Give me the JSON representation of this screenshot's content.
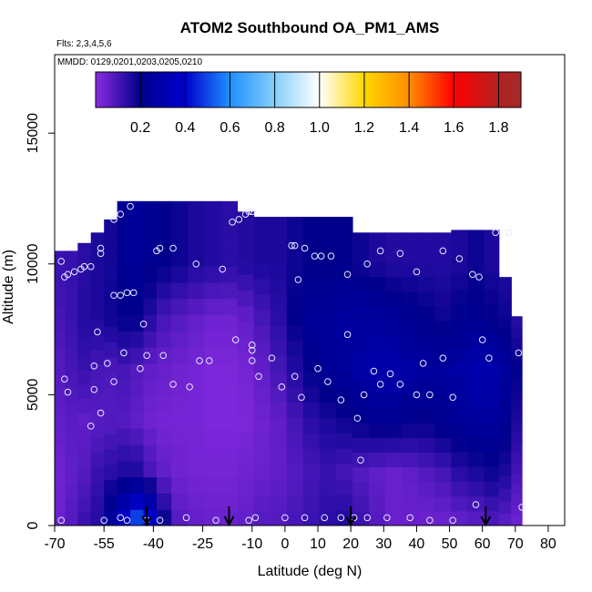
{
  "chart_data": {
    "type": "heatmap",
    "title": "ATOM2 Southbound OA_PM1_AMS",
    "subtitle_flights": "Flts: 2,3,4,5,6",
    "subtitle_dates": "MMDD: 0129,0201,0203,0205,0210",
    "xlabel": "Latitude (deg N)",
    "ylabel": "Altitude (m)",
    "xlim": [
      -70,
      85
    ],
    "ylim": [
      0,
      18000
    ],
    "x_ticks": [
      -70,
      -55,
      -40,
      -25,
      -10,
      0,
      10,
      20,
      30,
      40,
      50,
      60,
      70,
      80
    ],
    "x_tick_labels": [
      "-70",
      "-55",
      "-40",
      "-25",
      "-10",
      "0",
      "10",
      "20",
      "30",
      "40",
      "50",
      "60",
      "70",
      "80"
    ],
    "y_ticks": [
      0,
      5000,
      10000,
      15000
    ],
    "y_tick_labels": [
      "0",
      "5000",
      "10000",
      "15000"
    ],
    "colorbar": {
      "range": [
        0,
        1.9
      ],
      "ticks": [
        0.2,
        0.4,
        0.6,
        0.8,
        1.0,
        1.2,
        1.4,
        1.6,
        1.8
      ],
      "tick_labels": [
        "0.2",
        "0.4",
        "0.6",
        "0.8",
        "1.0",
        "1.2",
        "1.4",
        "1.6",
        "1.8"
      ],
      "stops": [
        {
          "v": 0.0,
          "color": "#8a2be2"
        },
        {
          "v": 0.2,
          "color": "#00008b"
        },
        {
          "v": 0.4,
          "color": "#0000cd"
        },
        {
          "v": 0.6,
          "color": "#1e90ff"
        },
        {
          "v": 0.8,
          "color": "#87cefa"
        },
        {
          "v": 1.0,
          "color": "#ffffff"
        },
        {
          "v": 1.2,
          "color": "#ffd700"
        },
        {
          "v": 1.4,
          "color": "#ff8c00"
        },
        {
          "v": 1.6,
          "color": "#ff0000"
        },
        {
          "v": 1.8,
          "color": "#b22222"
        },
        {
          "v": 1.9,
          "color": "#a52a2a"
        }
      ]
    },
    "field_columns": [
      {
        "lat": -68.5,
        "zmax": 10500,
        "v": [
          0.05,
          0.04,
          0.06,
          0.08,
          0.1,
          0.12
        ]
      },
      {
        "lat": -65,
        "zmax": 10500,
        "v": [
          0.08,
          0.06,
          0.07,
          0.1,
          0.12,
          0.12
        ]
      },
      {
        "lat": -61,
        "zmax": 10800,
        "v": [
          0.12,
          0.08,
          0.06,
          0.12,
          0.15,
          0.14
        ]
      },
      {
        "lat": -57,
        "zmax": 11200,
        "v": [
          0.15,
          0.12,
          0.07,
          0.1,
          0.16,
          0.16
        ]
      },
      {
        "lat": -53,
        "zmax": 11700,
        "v": [
          0.28,
          0.14,
          0.08,
          0.09,
          0.18,
          0.17
        ]
      },
      {
        "lat": -49,
        "zmax": 12400,
        "v": [
          0.4,
          0.16,
          0.08,
          0.1,
          0.2,
          0.22
        ]
      },
      {
        "lat": -45,
        "zmax": 12400,
        "v": [
          0.55,
          0.16,
          0.06,
          0.08,
          0.2,
          0.24
        ]
      },
      {
        "lat": -41,
        "zmax": 12400,
        "v": [
          0.45,
          0.1,
          0.04,
          0.06,
          0.15,
          0.22
        ]
      },
      {
        "lat": -37,
        "zmax": 12400,
        "v": [
          0.2,
          0.06,
          0.03,
          0.05,
          0.1,
          0.2
        ]
      },
      {
        "lat": -32,
        "zmax": 12400,
        "v": [
          0.08,
          0.04,
          0.03,
          0.04,
          0.08,
          0.18
        ]
      },
      {
        "lat": -27,
        "zmax": 12400,
        "v": [
          0.06,
          0.03,
          0.03,
          0.03,
          0.06,
          0.16
        ]
      },
      {
        "lat": -22,
        "zmax": 12400,
        "v": [
          0.05,
          0.03,
          0.02,
          0.02,
          0.04,
          0.15
        ]
      },
      {
        "lat": -17,
        "zmax": 12400,
        "v": [
          0.05,
          0.03,
          0.02,
          0.02,
          0.04,
          0.14
        ]
      },
      {
        "lat": -12,
        "zmax": 12000,
        "v": [
          0.06,
          0.04,
          0.02,
          0.03,
          0.06,
          0.15
        ]
      },
      {
        "lat": -7,
        "zmax": 11800,
        "v": [
          0.08,
          0.05,
          0.04,
          0.06,
          0.1,
          0.16
        ]
      },
      {
        "lat": -2,
        "zmax": 11800,
        "v": [
          0.08,
          0.06,
          0.06,
          0.1,
          0.14,
          0.16
        ]
      },
      {
        "lat": 3,
        "zmax": 11800,
        "v": [
          0.1,
          0.08,
          0.1,
          0.15,
          0.2,
          0.18
        ]
      },
      {
        "lat": 8,
        "zmax": 11800,
        "v": [
          0.12,
          0.1,
          0.14,
          0.2,
          0.24,
          0.2
        ]
      },
      {
        "lat": 13,
        "zmax": 11800,
        "v": [
          0.14,
          0.12,
          0.16,
          0.24,
          0.24,
          0.2
        ]
      },
      {
        "lat": 18,
        "zmax": 11800,
        "v": [
          0.16,
          0.1,
          0.18,
          0.25,
          0.26,
          0.2
        ]
      },
      {
        "lat": 23,
        "zmax": 11200,
        "v": [
          0.12,
          0.08,
          0.2,
          0.28,
          0.26,
          0.18
        ]
      },
      {
        "lat": 28,
        "zmax": 11200,
        "v": [
          0.08,
          0.06,
          0.22,
          0.3,
          0.26,
          0.16
        ]
      },
      {
        "lat": 33,
        "zmax": 11200,
        "v": [
          0.05,
          0.05,
          0.22,
          0.3,
          0.24,
          0.15
        ]
      },
      {
        "lat": 38,
        "zmax": 11200,
        "v": [
          0.05,
          0.06,
          0.2,
          0.28,
          0.22,
          0.15
        ]
      },
      {
        "lat": 43,
        "zmax": 11200,
        "v": [
          0.04,
          0.08,
          0.2,
          0.26,
          0.2,
          0.15
        ]
      },
      {
        "lat": 48,
        "zmax": 11200,
        "v": [
          0.04,
          0.1,
          0.22,
          0.26,
          0.18,
          0.15
        ]
      },
      {
        "lat": 53,
        "zmax": 11300,
        "v": [
          0.05,
          0.14,
          0.24,
          0.28,
          0.2,
          0.16
        ]
      },
      {
        "lat": 58,
        "zmax": 11300,
        "v": [
          0.06,
          0.16,
          0.26,
          0.3,
          0.22,
          0.18
        ]
      },
      {
        "lat": 63,
        "zmax": 11300,
        "v": [
          0.08,
          0.18,
          0.26,
          0.3,
          0.2,
          0.16
        ]
      },
      {
        "lat": 67,
        "zmax": 9500,
        "v": [
          0.06,
          0.16,
          0.22,
          0.26,
          0.18,
          0.15
        ]
      },
      {
        "lat": 70.5,
        "zmax": 8000,
        "v": [
          0.04,
          0.1,
          0.16,
          0.2,
          0.14,
          0.12
        ]
      }
    ],
    "field_levels_m": [
      0,
      2000,
      4000,
      6000,
      8000,
      10000
    ],
    "points": [
      [
        -68,
        10100
      ],
      [
        -67,
        9500
      ],
      [
        -66,
        9600
      ],
      [
        -64,
        9700
      ],
      [
        -62,
        9800
      ],
      [
        -61,
        9900
      ],
      [
        -59,
        9900
      ],
      [
        -56,
        10600
      ],
      [
        -56,
        10400
      ],
      [
        -52,
        11700
      ],
      [
        -50,
        11900
      ],
      [
        -47,
        12200
      ],
      [
        -39,
        10500
      ],
      [
        -38,
        10600
      ],
      [
        -34,
        10600
      ],
      [
        -27,
        10000
      ],
      [
        -19,
        9800
      ],
      [
        -16,
        11600
      ],
      [
        -14,
        11700
      ],
      [
        -12,
        11900
      ],
      [
        -11,
        12000
      ],
      [
        -10,
        12000
      ],
      [
        -52,
        8800
      ],
      [
        -50,
        8800
      ],
      [
        -48,
        8900
      ],
      [
        -46,
        8900
      ],
      [
        -43,
        7700
      ],
      [
        -67,
        5600
      ],
      [
        -66,
        5100
      ],
      [
        -59,
        3800
      ],
      [
        -58,
        5200
      ],
      [
        -58,
        6100
      ],
      [
        -57,
        7400
      ],
      [
        -56,
        4300
      ],
      [
        -54,
        6200
      ],
      [
        -52,
        5500
      ],
      [
        -49,
        6600
      ],
      [
        -44,
        6000
      ],
      [
        -42,
        6500
      ],
      [
        -37,
        6500
      ],
      [
        -34,
        5400
      ],
      [
        -29,
        5300
      ],
      [
        -26,
        6300
      ],
      [
        -23,
        6300
      ],
      [
        -15,
        7100
      ],
      [
        -10,
        6900
      ],
      [
        -10,
        6700
      ],
      [
        -10,
        6300
      ],
      [
        -8,
        5700
      ],
      [
        -4,
        6400
      ],
      [
        -1,
        5300
      ],
      [
        3,
        5700
      ],
      [
        5,
        4900
      ],
      [
        10,
        6000
      ],
      [
        13,
        5500
      ],
      [
        17,
        4800
      ],
      [
        6,
        10600
      ],
      [
        3,
        10700
      ],
      [
        2,
        10700
      ],
      [
        4,
        9400
      ],
      [
        9,
        10300
      ],
      [
        11,
        10300
      ],
      [
        14,
        10300
      ],
      [
        19,
        9600
      ],
      [
        19,
        7300
      ],
      [
        22,
        4100
      ],
      [
        23,
        2500
      ],
      [
        24,
        5000
      ],
      [
        27,
        5900
      ],
      [
        29,
        5400
      ],
      [
        32,
        5800
      ],
      [
        35,
        5400
      ],
      [
        40,
        5000
      ],
      [
        42,
        6200
      ],
      [
        44,
        5000
      ],
      [
        48,
        6400
      ],
      [
        51,
        4900
      ],
      [
        25,
        10000
      ],
      [
        29,
        10500
      ],
      [
        35,
        10400
      ],
      [
        40,
        9700
      ],
      [
        48,
        10500
      ],
      [
        53,
        10200
      ],
      [
        57,
        9600
      ],
      [
        59,
        9500
      ],
      [
        60,
        7100
      ],
      [
        62,
        6400
      ],
      [
        64,
        11200
      ],
      [
        68,
        11200
      ],
      [
        71,
        6600
      ],
      [
        -68,
        200
      ],
      [
        -55,
        200
      ],
      [
        -50,
        300
      ],
      [
        -48,
        200
      ],
      [
        -42,
        200
      ],
      [
        -38,
        200
      ],
      [
        -30,
        300
      ],
      [
        -21,
        200
      ],
      [
        -11,
        200
      ],
      [
        -9,
        300
      ],
      [
        0,
        300
      ],
      [
        6,
        300
      ],
      [
        12,
        300
      ],
      [
        17,
        300
      ],
      [
        21,
        300
      ],
      [
        25,
        300
      ],
      [
        31,
        300
      ],
      [
        38,
        300
      ],
      [
        44,
        200
      ],
      [
        51,
        200
      ],
      [
        58,
        800
      ],
      [
        72,
        700
      ]
    ],
    "arrows_lat": [
      -42,
      -17,
      20,
      61
    ]
  }
}
